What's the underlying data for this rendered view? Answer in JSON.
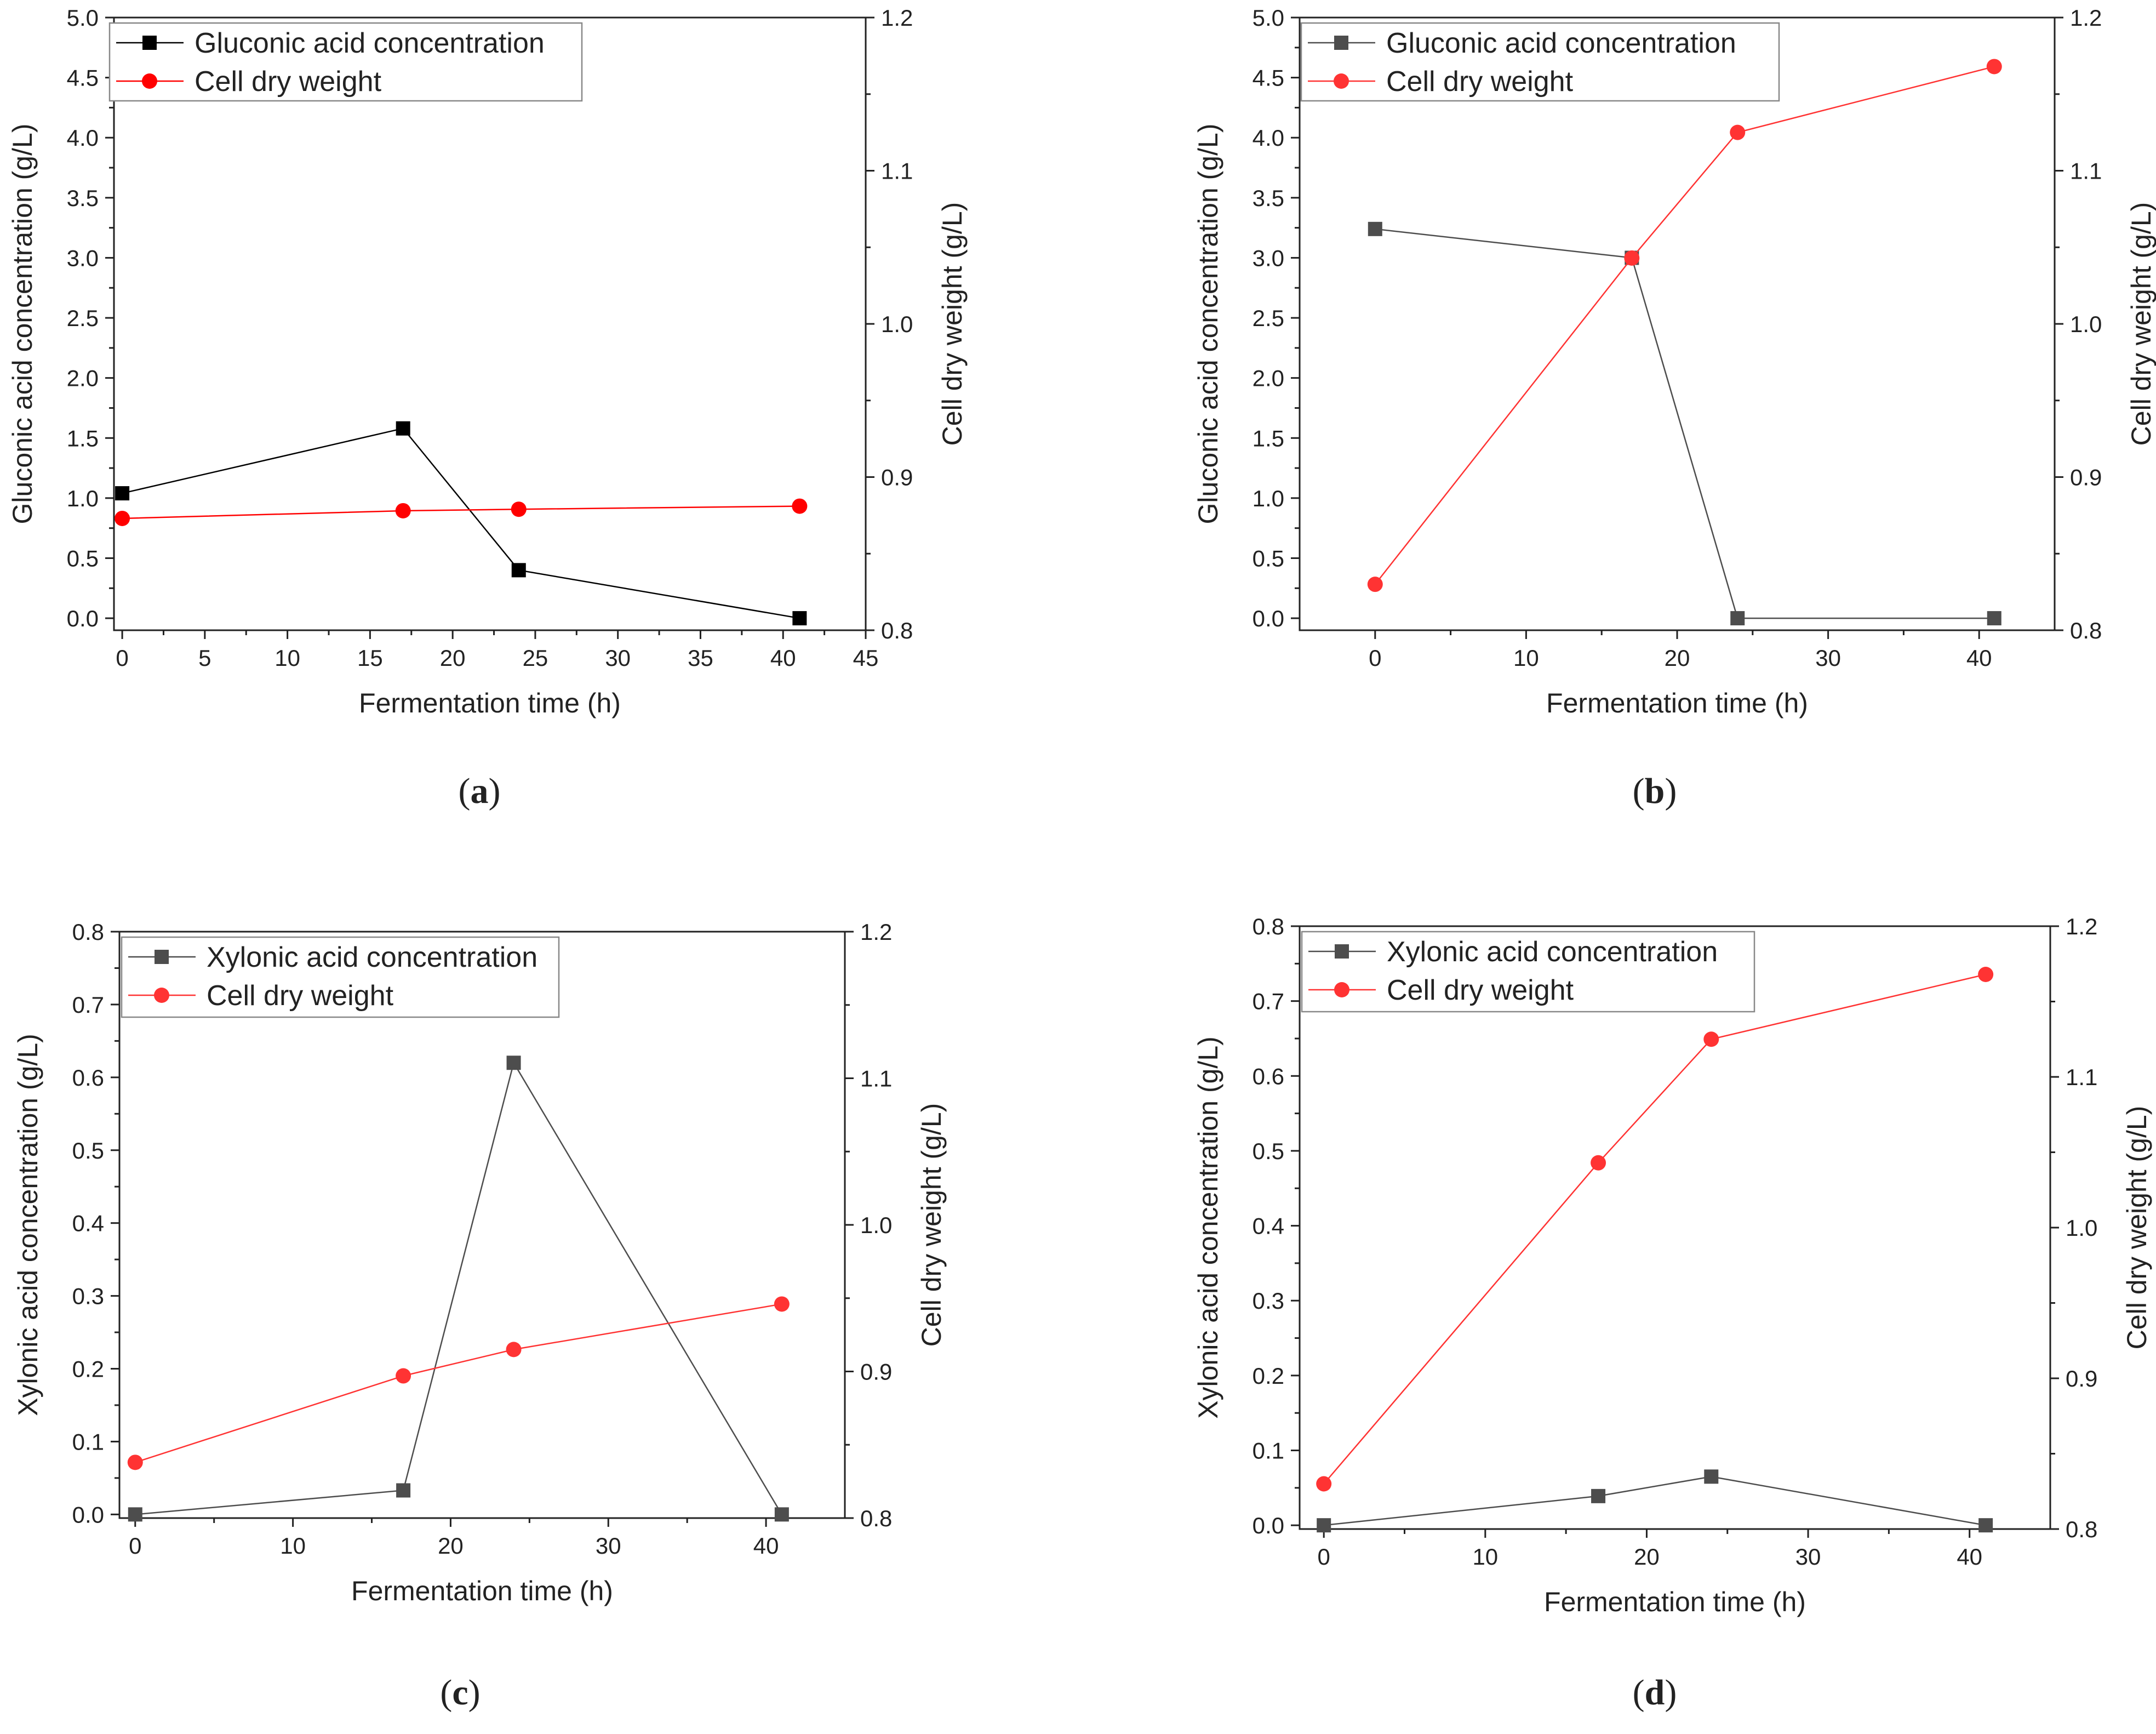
{
  "chart_data": [
    {
      "type": "line",
      "panel": "a",
      "xlabel": "Fermentation time (h)",
      "ylabel_left": "Gluconic acid concentration (g/L)",
      "ylabel_right": "Cell dry weight (g/L)",
      "xlim": [
        -0.5,
        45
      ],
      "xticks": [
        0,
        5,
        10,
        15,
        20,
        25,
        30,
        35,
        40,
        45
      ],
      "ylim_left": [
        -0.1,
        5.0
      ],
      "yticks_left": [
        0.0,
        0.5,
        1.0,
        1.5,
        2.0,
        2.5,
        3.0,
        3.5,
        4.0,
        4.5,
        5.0
      ],
      "ylim_right": [
        0.8,
        1.2
      ],
      "yticks_right": [
        0.8,
        0.9,
        1.0,
        1.1,
        1.2
      ],
      "legend_position": "top-left",
      "series": [
        {
          "name": "Gluconic acid concentration",
          "axis": "left",
          "marker": "square",
          "color": "#000000",
          "x": [
            0,
            17,
            24,
            41
          ],
          "y": [
            1.04,
            1.58,
            0.4,
            0.0
          ]
        },
        {
          "name": "Cell dry weight",
          "axis": "right",
          "marker": "circle",
          "color": "#ff0000",
          "x": [
            0,
            17,
            24,
            41
          ],
          "y": [
            0.873,
            0.878,
            0.879,
            0.881
          ]
        }
      ]
    },
    {
      "type": "line",
      "panel": "b",
      "xlabel": "Fermentation time (h)",
      "ylabel_left": "Gluconic acid concentration (g/L)",
      "ylabel_right": "Cell dry weight (g/L)",
      "xlim": [
        -5,
        45
      ],
      "xticks": [
        0,
        10,
        20,
        30,
        40
      ],
      "ylim_left": [
        -0.1,
        5.0
      ],
      "yticks_left": [
        0.0,
        0.5,
        1.0,
        1.5,
        2.0,
        2.5,
        3.0,
        3.5,
        4.0,
        4.5,
        5.0
      ],
      "ylim_right": [
        0.8,
        1.2
      ],
      "yticks_right": [
        0.8,
        0.9,
        1.0,
        1.1,
        1.2
      ],
      "legend_position": "top-left",
      "series": [
        {
          "name": "Gluconic acid concentration",
          "axis": "left",
          "marker": "square",
          "color": "#4d4d4d",
          "x": [
            0,
            17,
            24,
            41
          ],
          "y": [
            3.24,
            3.0,
            0.0,
            0.0
          ]
        },
        {
          "name": "Cell dry weight",
          "axis": "right",
          "marker": "circle",
          "color": "#ff3333",
          "x": [
            0,
            17,
            24,
            41
          ],
          "y": [
            0.83,
            1.043,
            1.125,
            1.168
          ]
        }
      ]
    },
    {
      "type": "line",
      "panel": "c",
      "xlabel": "Fermentation time (h)",
      "ylabel_left": "Xylonic acid concentration (g/L)",
      "ylabel_right": "Cell dry weight (g/L)",
      "xlim": [
        -1,
        45
      ],
      "xticks": [
        0,
        10,
        20,
        30,
        40
      ],
      "ylim_left": [
        -0.005,
        0.8
      ],
      "yticks_left": [
        0.0,
        0.1,
        0.2,
        0.3,
        0.4,
        0.5,
        0.6,
        0.7,
        0.8
      ],
      "ylim_right": [
        0.8,
        1.2
      ],
      "yticks_right": [
        0.8,
        0.9,
        1.0,
        1.1,
        1.2
      ],
      "legend_position": "top-left",
      "series": [
        {
          "name": "Xylonic acid concentration",
          "axis": "left",
          "marker": "square",
          "color": "#4d4d4d",
          "x": [
            0,
            17,
            24,
            41
          ],
          "y": [
            0.0,
            0.033,
            0.62,
            0.0
          ]
        },
        {
          "name": "Cell dry weight",
          "axis": "right",
          "marker": "circle",
          "color": "#ff3333",
          "x": [
            0,
            17,
            24,
            41
          ],
          "y": [
            0.838,
            0.897,
            0.915,
            0.946
          ]
        }
      ]
    },
    {
      "type": "line",
      "panel": "d",
      "xlabel": "Fermentation time (h)",
      "ylabel_left": "Xylonic acid concentration (g/L)",
      "ylabel_right": "Cell dry weight (g/L)",
      "xlim": [
        -1.5,
        45
      ],
      "xticks": [
        0,
        10,
        20,
        30,
        40
      ],
      "ylim_left": [
        -0.005,
        0.8
      ],
      "yticks_left": [
        0.0,
        0.1,
        0.2,
        0.3,
        0.4,
        0.5,
        0.6,
        0.7,
        0.8
      ],
      "ylim_right": [
        0.8,
        1.2
      ],
      "yticks_right": [
        0.8,
        0.9,
        1.0,
        1.1,
        1.2
      ],
      "legend_position": "top-left",
      "series": [
        {
          "name": "Xylonic acid concentration",
          "axis": "left",
          "marker": "square",
          "color": "#4d4d4d",
          "x": [
            0,
            17,
            24,
            41
          ],
          "y": [
            0.0,
            0.039,
            0.065,
            0.0
          ]
        },
        {
          "name": "Cell dry weight",
          "axis": "right",
          "marker": "circle",
          "color": "#ff3333",
          "x": [
            0,
            17,
            24,
            41
          ],
          "y": [
            0.83,
            1.043,
            1.125,
            1.168
          ]
        }
      ]
    }
  ],
  "panels": [
    {
      "label_letter": "a",
      "label_open": "(",
      "label_close": ")"
    },
    {
      "label_letter": "b",
      "label_open": "(",
      "label_close": ")"
    },
    {
      "label_letter": "c",
      "label_open": "(",
      "label_close": ")"
    },
    {
      "label_letter": "d",
      "label_open": "(",
      "label_close": ")"
    }
  ],
  "colors": {
    "axis": "#222222",
    "legend_border": "#888888"
  }
}
